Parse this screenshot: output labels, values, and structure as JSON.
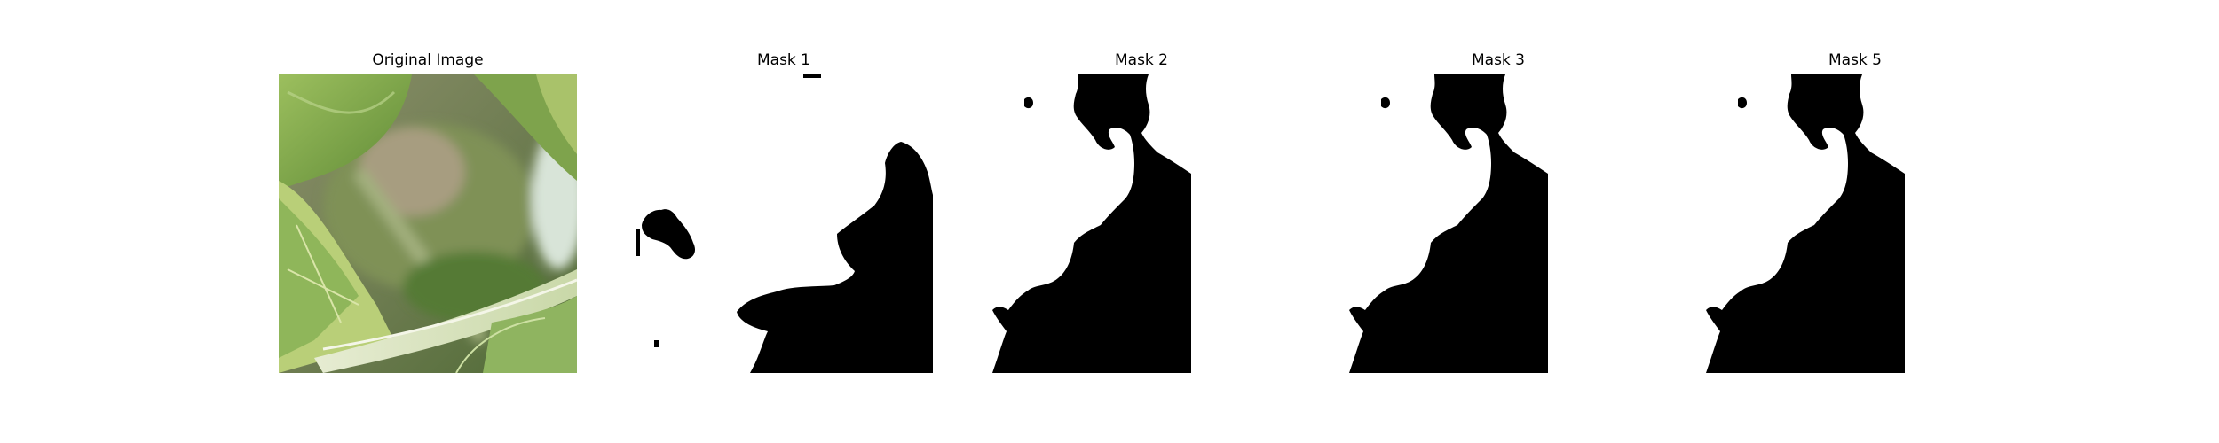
{
  "figure": {
    "panels": [
      {
        "title": "Original Image",
        "kind": "photo",
        "subject": "leaf-closeup"
      },
      {
        "title": "Mask 1",
        "kind": "mask"
      },
      {
        "title": "Mask 2",
        "kind": "mask"
      },
      {
        "title": "Mask 3",
        "kind": "mask"
      },
      {
        "title": "Mask 5",
        "kind": "mask"
      }
    ],
    "colors": {
      "mask_foreground": "#000000",
      "mask_background": "#ffffff",
      "leaf_green": "#7aa04a",
      "stem_pale": "#dde6c8"
    }
  }
}
